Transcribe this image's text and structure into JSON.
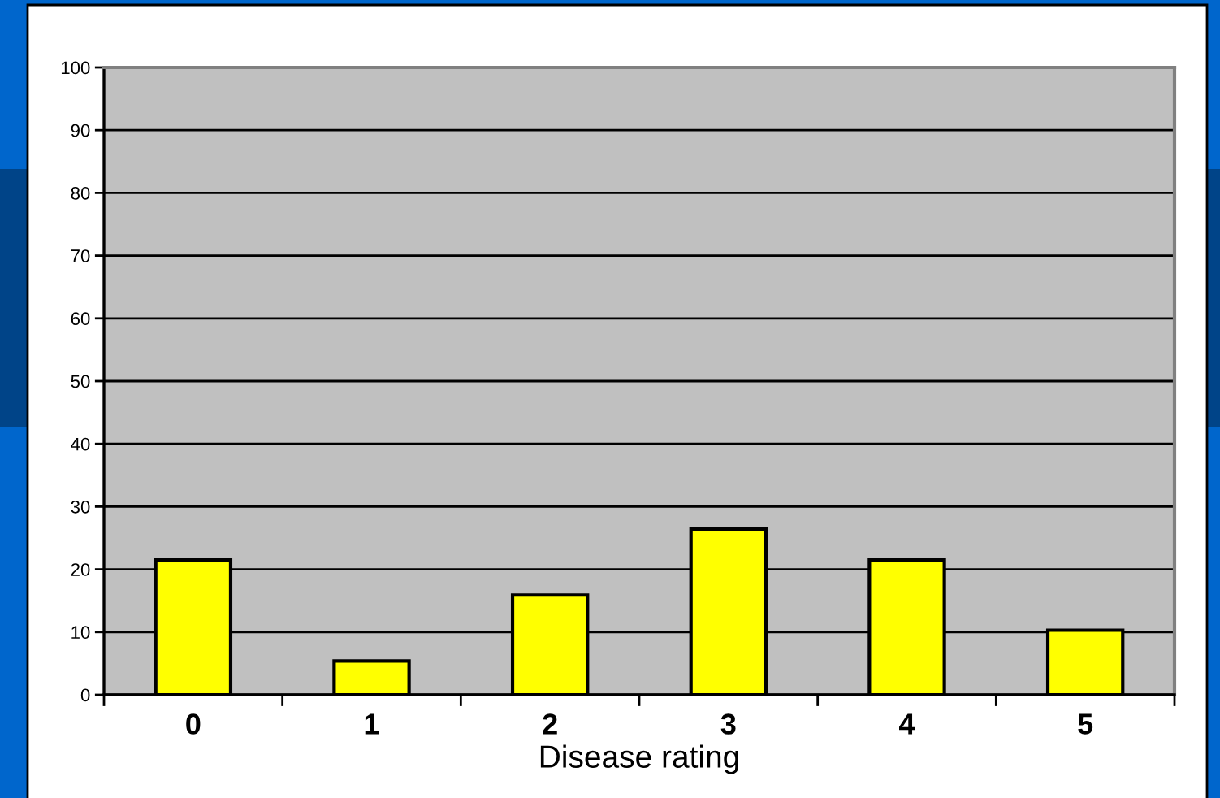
{
  "chart_data": {
    "type": "bar",
    "xlabel": "Disease rating",
    "categories": [
      "0",
      "1",
      "2",
      "3",
      "4",
      "5"
    ],
    "values": [
      21.5,
      5.4,
      15.9,
      26.4,
      21.5,
      10.3
    ],
    "color": "#ffff00",
    "ylim": [
      0,
      100
    ],
    "yticks": [
      0,
      10,
      20,
      30,
      40,
      50,
      60,
      70,
      80,
      90,
      100
    ],
    "grid": "y"
  }
}
